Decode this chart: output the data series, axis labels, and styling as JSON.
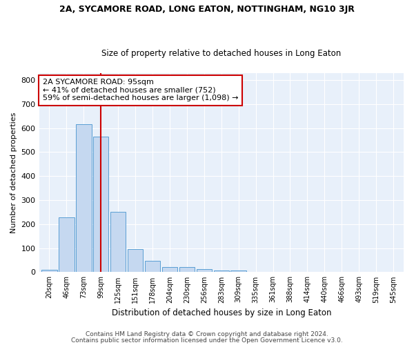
{
  "title1": "2A, SYCAMORE ROAD, LONG EATON, NOTTINGHAM, NG10 3JR",
  "title2": "Size of property relative to detached houses in Long Eaton",
  "xlabel": "Distribution of detached houses by size in Long Eaton",
  "ylabel": "Number of detached properties",
  "categories": [
    "20sqm",
    "46sqm",
    "73sqm",
    "99sqm",
    "125sqm",
    "151sqm",
    "178sqm",
    "204sqm",
    "230sqm",
    "256sqm",
    "283sqm",
    "309sqm",
    "335sqm",
    "361sqm",
    "388sqm",
    "414sqm",
    "440sqm",
    "466sqm",
    "493sqm",
    "519sqm",
    "545sqm"
  ],
  "values": [
    10,
    228,
    617,
    565,
    252,
    95,
    46,
    22,
    22,
    12,
    8,
    8,
    0,
    0,
    0,
    0,
    0,
    0,
    0,
    0,
    0
  ],
  "bar_color": "#c5d8f0",
  "bar_edge_color": "#5a9ed4",
  "vline_x": 3,
  "vline_color": "#cc0000",
  "annotation_text": "2A SYCAMORE ROAD: 95sqm\n← 41% of detached houses are smaller (752)\n59% of semi-detached houses are larger (1,098) →",
  "annotation_box_color": "#ffffff",
  "annotation_box_edge": "#cc0000",
  "ylim": [
    0,
    830
  ],
  "yticks": [
    0,
    100,
    200,
    300,
    400,
    500,
    600,
    700,
    800
  ],
  "footer1": "Contains HM Land Registry data © Crown copyright and database right 2024.",
  "footer2": "Contains public sector information licensed under the Open Government Licence v3.0.",
  "bg_color": "#ffffff",
  "plot_bg_color": "#e8f0fa"
}
